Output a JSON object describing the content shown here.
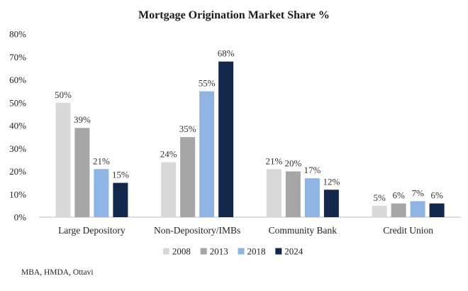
{
  "chart_data": {
    "type": "bar",
    "title": "Mortgage Origination Market Share %",
    "categories": [
      "Large Depository",
      "Non-Depository/IMBs",
      "Community Bank",
      "Credit Union"
    ],
    "series": [
      {
        "name": "2008",
        "color": "#d9d9d9",
        "values": [
          50,
          24,
          21,
          5
        ]
      },
      {
        "name": "2013",
        "color": "#a6a6a6",
        "values": [
          39,
          35,
          20,
          6
        ]
      },
      {
        "name": "2018",
        "color": "#8fb4e3",
        "values": [
          21,
          55,
          17,
          7
        ]
      },
      {
        "name": "2024",
        "color": "#14284b",
        "values": [
          15,
          68,
          12,
          6
        ]
      }
    ],
    "ylim": [
      0,
      80
    ],
    "yticks": [
      "0%",
      "10%",
      "20%",
      "30%",
      "40%",
      "50%",
      "60%",
      "70%",
      "80%"
    ],
    "data_label_suffix": "%",
    "grid": false,
    "legend_position": "bottom",
    "xlabel": "",
    "ylabel": ""
  },
  "source": "MBA, HMDA, Ottavi"
}
